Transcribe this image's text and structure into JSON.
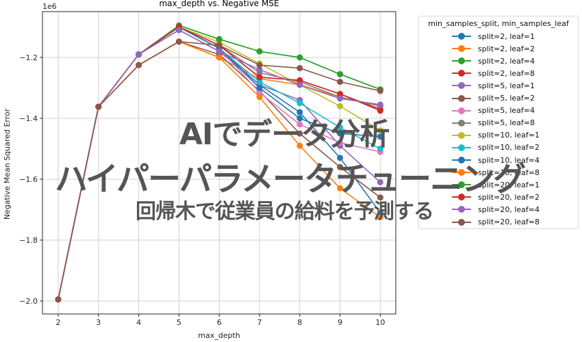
{
  "chart_data": {
    "type": "line",
    "title": "max_depth vs. Negative MSE",
    "xlabel": "max_depth",
    "ylabel": "Negative Mean Squared Error",
    "y_scale_label": "1e6",
    "x": [
      2,
      3,
      4,
      5,
      6,
      7,
      8,
      9,
      10
    ],
    "xticks": [
      "2",
      "3",
      "4",
      "5",
      "6",
      "7",
      "8",
      "9",
      "10"
    ],
    "yticks": [
      "-2.0",
      "-1.8",
      "-1.6",
      "-1.4",
      "-1.2"
    ],
    "ylim": [
      -2.04,
      -1.06
    ],
    "xlim": [
      1.6,
      10.4
    ],
    "grid": true,
    "legend_title": "min_samples_split, min_samples_leaf",
    "legend_position": "outside upper right",
    "series": [
      {
        "name": "split=2, leaf=1",
        "color": "#1f77b4",
        "values": [
          -1.995,
          -1.362,
          -1.19,
          -1.1,
          -1.17,
          -1.29,
          -1.38,
          -1.53,
          -1.71
        ]
      },
      {
        "name": "split=2, leaf=2",
        "color": "#ff7f0e",
        "values": [
          -1.995,
          -1.362,
          -1.225,
          -1.148,
          -1.2,
          -1.27,
          -1.29,
          -1.33,
          -1.36
        ]
      },
      {
        "name": "split=2, leaf=4",
        "color": "#2ca02c",
        "values": [
          -1.995,
          -1.362,
          -1.19,
          -1.095,
          -1.14,
          -1.18,
          -1.2,
          -1.255,
          -1.305
        ]
      },
      {
        "name": "split=2, leaf=8",
        "color": "#d62728",
        "values": [
          -1.995,
          -1.362,
          -1.19,
          -1.1,
          -1.16,
          -1.265,
          -1.275,
          -1.32,
          -1.37
        ]
      },
      {
        "name": "split=5, leaf=1",
        "color": "#9467bd",
        "values": [
          -1.995,
          -1.362,
          -1.19,
          -1.11,
          -1.18,
          -1.29,
          -1.34,
          -1.49,
          -1.61
        ]
      },
      {
        "name": "split=5, leaf=2",
        "color": "#8c564b",
        "values": [
          -1.995,
          -1.362,
          -1.225,
          -1.148,
          -1.19,
          -1.31,
          -1.45,
          -1.56,
          -1.66
        ]
      },
      {
        "name": "split=5, leaf=4",
        "color": "#e377c2",
        "values": [
          -1.995,
          -1.362,
          -1.19,
          -1.1,
          -1.17,
          -1.315,
          -1.42,
          -1.48,
          -1.51
        ]
      },
      {
        "name": "split=5, leaf=8",
        "color": "#7f7f7f",
        "values": [
          -1.995,
          -1.362,
          -1.19,
          -1.1,
          -1.16,
          -1.25,
          -1.28,
          -1.33,
          -1.36
        ]
      },
      {
        "name": "split=10, leaf=1",
        "color": "#bcbd22",
        "values": [
          -1.995,
          -1.362,
          -1.19,
          -1.1,
          -1.15,
          -1.22,
          -1.29,
          -1.36,
          -1.44
        ]
      },
      {
        "name": "split=10, leaf=2",
        "color": "#17becf",
        "values": [
          -1.995,
          -1.362,
          -1.19,
          -1.1,
          -1.17,
          -1.28,
          -1.35,
          -1.43,
          -1.5
        ]
      },
      {
        "name": "split=10, leaf=4",
        "color": "#1f77b4",
        "values": [
          -1.995,
          -1.362,
          -1.19,
          -1.1,
          -1.17,
          -1.3,
          -1.4,
          -1.45,
          -1.46
        ]
      },
      {
        "name": "split=10, leaf=8",
        "color": "#ff7f0e",
        "values": [
          -1.995,
          -1.362,
          -1.225,
          -1.148,
          -1.2,
          -1.33,
          -1.49,
          -1.63,
          -1.725
        ]
      },
      {
        "name": "split=20, leaf=1",
        "color": "#2ca02c",
        "values": [
          -1.995,
          -1.362,
          -1.19,
          -1.095,
          -1.14,
          -1.18,
          -1.2,
          -1.255,
          -1.305
        ]
      },
      {
        "name": "split=20, leaf=2",
        "color": "#d62728",
        "values": [
          -1.995,
          -1.362,
          -1.19,
          -1.1,
          -1.16,
          -1.265,
          -1.275,
          -1.32,
          -1.375
        ]
      },
      {
        "name": "split=20, leaf=4",
        "color": "#9467bd",
        "values": [
          -1.995,
          -1.362,
          -1.19,
          -1.11,
          -1.18,
          -1.24,
          -1.29,
          -1.335,
          -1.355
        ]
      },
      {
        "name": "split=20, leaf=8",
        "color": "#8c564b",
        "values": [
          -1.995,
          -1.362,
          -1.225,
          -1.148,
          -1.16,
          -1.225,
          -1.235,
          -1.28,
          -1.31
        ]
      }
    ]
  },
  "overlay": {
    "line1": "AIでデータ分析",
    "line2": "ハイパーパラメータチューニング",
    "line3": "回帰木で従業員の給料を予測する"
  }
}
